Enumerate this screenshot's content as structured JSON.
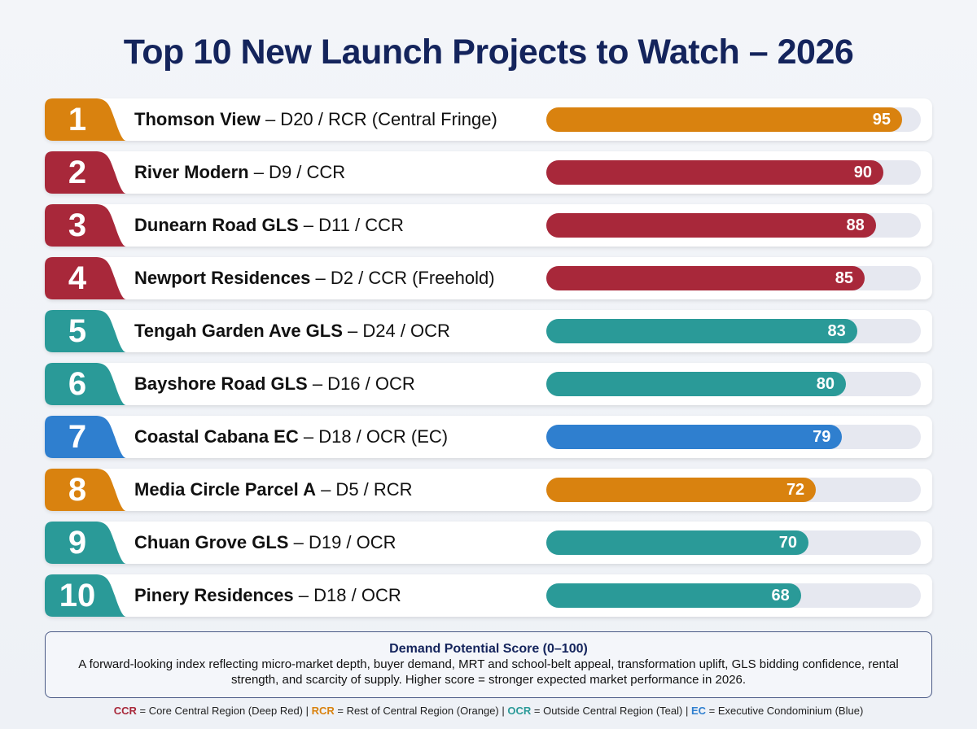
{
  "title": "Top 10 New Launch Projects to Watch – 2026",
  "colors": {
    "CCR": "#a8283a",
    "RCR": "#d9820f",
    "OCR": "#2a9a98",
    "EC": "#2f7fcf"
  },
  "chart_data": {
    "type": "bar",
    "orientation": "horizontal",
    "xlim": [
      0,
      100
    ],
    "items": [
      {
        "rank": "1",
        "name": "Thomson View",
        "detail": " – D20 / RCR (Central Fringe)",
        "region": "RCR",
        "value": 95
      },
      {
        "rank": "2",
        "name": "River Modern",
        "detail": " – D9 / CCR",
        "region": "CCR",
        "value": 90
      },
      {
        "rank": "3",
        "name": "Dunearn Road GLS",
        "detail": " – D11 / CCR",
        "region": "CCR",
        "value": 88
      },
      {
        "rank": "4",
        "name": "Newport Residences",
        "detail": " – D2 / CCR (Freehold)",
        "region": "CCR",
        "value": 85
      },
      {
        "rank": "5",
        "name": "Tengah Garden Ave GLS",
        "detail": " – D24 / OCR",
        "region": "OCR",
        "value": 83
      },
      {
        "rank": "6",
        "name": "Bayshore Road GLS",
        "detail": " – D16 / OCR",
        "region": "OCR",
        "value": 80
      },
      {
        "rank": "7",
        "name": "Coastal Cabana EC",
        "detail": " – D18 / OCR (EC)",
        "region": "EC",
        "value": 79
      },
      {
        "rank": "8",
        "name": "Media Circle Parcel A",
        "detail": " – D5 / RCR",
        "region": "RCR",
        "value": 72
      },
      {
        "rank": "9",
        "name": "Chuan Grove GLS",
        "detail": " – D19 / OCR",
        "region": "OCR",
        "value": 70
      },
      {
        "rank": "10",
        "name": "Pinery Residences",
        "detail": " – D18 / OCR",
        "region": "OCR",
        "value": 68
      }
    ]
  },
  "note": {
    "title": "Demand Potential Score (0–100)",
    "body": "A forward-looking index reflecting micro-market depth, buyer demand, MRT and school-belt appeal, transformation uplift, GLS bidding confidence, rental strength, and scarcity of supply. Higher score = stronger expected market performance in 2026."
  },
  "legend": [
    {
      "code": "CCR",
      "text": " = Core Central Region (Deep Red)"
    },
    {
      "code": "RCR",
      "text": " = Rest of Central Region (Orange)"
    },
    {
      "code": "OCR",
      "text": " = Outside Central Region (Teal)"
    },
    {
      "code": "EC",
      "text": " = Executive Condominium (Blue)"
    }
  ],
  "legend_separator": " | "
}
